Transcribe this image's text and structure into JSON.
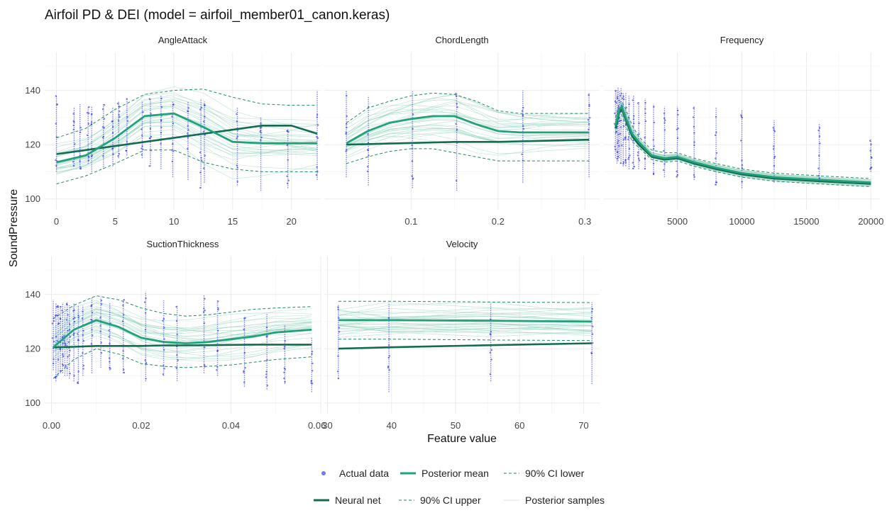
{
  "title": "Airfoil PD & DEI (model = airfoil_member01_canon.keras)",
  "xlabel": "Feature value",
  "ylabel": "SoundPressure",
  "colors": {
    "actual": "#2222ee",
    "posterior_mean": "#22a17c",
    "ci": "#1b8a63",
    "neural_net": "#156b52",
    "samples": "#8fd1b9",
    "grid": "#ebebeb"
  },
  "legend": {
    "row1": [
      "Actual data",
      "Posterior mean",
      "90% CI lower"
    ],
    "row2": [
      "Neural net",
      "90% CI upper",
      "Posterior samples"
    ]
  },
  "chart_data": [
    {
      "type": "line",
      "facet": "AngleAttack",
      "xlim": [
        -1,
        22.5
      ],
      "ylim": [
        96,
        154
      ],
      "xticks": [
        0,
        5,
        10,
        15,
        20
      ],
      "xtick_labels": [
        "0",
        "5",
        "10",
        "15",
        "20"
      ],
      "yticks": [
        100,
        120,
        140
      ],
      "x": [
        0,
        2.5,
        5,
        7.5,
        10,
        12.5,
        15,
        17.5,
        20,
        22.2
      ],
      "posterior_mean": [
        113.5,
        116,
        122.5,
        130.5,
        131.5,
        126.5,
        121,
        120.5,
        120.5,
        120.5
      ],
      "ci_lower": [
        105.5,
        108.5,
        113,
        118,
        118,
        113.5,
        111,
        110,
        110,
        110
      ],
      "ci_upper": [
        122.5,
        126,
        133,
        138.5,
        140,
        140.5,
        137.5,
        135,
        134.5,
        134.5
      ],
      "neural_net": [
        116.5,
        118,
        119.5,
        121,
        122.5,
        124,
        125.5,
        127,
        127,
        124
      ],
      "actual_x": [
        0,
        1.5,
        2,
        2.7,
        3,
        4,
        4.8,
        5.3,
        6,
        7.3,
        8,
        8.9,
        9.9,
        11.2,
        12.3,
        12.6,
        15.4,
        17.4,
        19.7,
        22.2
      ],
      "actual_y": [
        [
          110,
          138
        ],
        [
          112,
          134
        ],
        [
          111,
          135
        ],
        [
          113,
          134
        ],
        [
          110,
          134
        ],
        [
          111,
          135
        ],
        [
          112,
          134
        ],
        [
          115,
          136
        ],
        [
          116,
          137
        ],
        [
          115,
          136
        ],
        [
          112,
          137
        ],
        [
          111,
          138
        ],
        [
          108,
          136
        ],
        [
          107,
          136
        ],
        [
          104,
          137
        ],
        [
          106,
          136
        ],
        [
          105,
          134
        ],
        [
          103,
          130
        ],
        [
          104,
          126
        ],
        [
          107,
          140
        ]
      ]
    },
    {
      "type": "line",
      "facet": "ChordLength",
      "xlim": [
        0.0,
        0.317
      ],
      "ylim": [
        96,
        154
      ],
      "xticks": [
        0.1,
        0.2,
        0.3
      ],
      "xtick_labels": [
        "0.1",
        "0.2",
        "0.3"
      ],
      "yticks": [
        100,
        120,
        140
      ],
      "x": [
        0.0254,
        0.05,
        0.075,
        0.1,
        0.125,
        0.15,
        0.175,
        0.2,
        0.225,
        0.25,
        0.3048
      ],
      "posterior_mean": [
        120.5,
        125,
        128,
        129.5,
        130.5,
        130.5,
        127.5,
        125,
        124.5,
        124.5,
        124.5
      ],
      "ci_lower": [
        113,
        115.5,
        117.5,
        118.5,
        118.5,
        117,
        115.5,
        114,
        114,
        114,
        114
      ],
      "ci_upper": [
        128,
        133.5,
        136,
        138,
        139,
        138.5,
        136,
        132.5,
        131.5,
        131.5,
        131.5
      ],
      "neural_net": [
        120,
        120.2,
        120.4,
        120.6,
        120.8,
        121,
        121,
        121,
        121.2,
        121.4,
        121.8
      ],
      "actual_x": [
        0.0254,
        0.0508,
        0.1016,
        0.1524,
        0.2286,
        0.3048
      ],
      "actual_y": [
        [
          108,
          140
        ],
        [
          105,
          138
        ],
        [
          104,
          140
        ],
        [
          103,
          139
        ],
        [
          106,
          140
        ],
        [
          108,
          139
        ]
      ]
    },
    {
      "type": "line",
      "facet": "Frequency",
      "xlim": [
        -700,
        20700
      ],
      "ylim": [
        96,
        154
      ],
      "xticks": [
        5000,
        10000,
        15000,
        20000
      ],
      "xtick_labels": [
        "5000",
        "10000",
        "15000",
        "20000"
      ],
      "yticks": [
        100,
        120,
        140
      ],
      "x": [
        200,
        500,
        700,
        1000,
        1500,
        2000,
        3000,
        4000,
        5000,
        6300,
        8000,
        10000,
        12500,
        16000,
        20000
      ],
      "posterior_mean": [
        127,
        133,
        134,
        130,
        124,
        121,
        116,
        115,
        115.5,
        113.5,
        111.5,
        109.5,
        108,
        107,
        106
      ],
      "ci_lower": [
        124,
        130,
        131,
        127,
        121,
        119,
        114.5,
        113.5,
        114,
        112,
        110,
        108,
        106.5,
        105.5,
        104.5
      ],
      "ci_upper": [
        130,
        135.5,
        136,
        133,
        127,
        123,
        118,
        117,
        117,
        115,
        113,
        111,
        109.5,
        108.5,
        107.5
      ],
      "neural_net": [
        126,
        132,
        133,
        129,
        123,
        120,
        115.5,
        114.5,
        115,
        113,
        111,
        109,
        107.5,
        106.5,
        105.5
      ],
      "actual_x": [
        200,
        315,
        400,
        500,
        630,
        800,
        1000,
        1250,
        1600,
        2000,
        2500,
        3150,
        4000,
        5000,
        6300,
        8000,
        10000,
        12500,
        16000,
        20000
      ],
      "actual_y": [
        [
          115,
          140
        ],
        [
          113,
          140
        ],
        [
          114,
          141
        ],
        [
          115,
          140
        ],
        [
          113,
          141
        ],
        [
          112,
          139
        ],
        [
          112,
          139
        ],
        [
          111,
          138
        ],
        [
          111,
          138
        ],
        [
          111,
          136
        ],
        [
          111,
          137
        ],
        [
          109,
          135
        ],
        [
          108,
          134
        ],
        [
          108,
          134
        ],
        [
          107,
          134
        ],
        [
          105,
          134
        ],
        [
          104,
          133
        ],
        [
          106,
          129
        ],
        [
          106,
          128
        ],
        [
          110,
          122
        ]
      ]
    },
    {
      "type": "line",
      "facet": "SuctionThickness",
      "xlim": [
        -0.0015,
        0.06
      ],
      "ylim": [
        96,
        154
      ],
      "xticks": [
        0.0,
        0.02,
        0.04,
        0.06
      ],
      "xtick_labels": [
        "0.00",
        "0.02",
        "0.04",
        "0.06"
      ],
      "yticks": [
        100,
        120,
        140
      ],
      "x": [
        0.0004,
        0.005,
        0.01,
        0.015,
        0.02,
        0.025,
        0.03,
        0.035,
        0.04,
        0.045,
        0.05,
        0.058
      ],
      "posterior_mean": [
        120.5,
        127,
        130.5,
        128,
        124,
        122.5,
        122,
        122.5,
        123.5,
        124.5,
        126,
        127
      ],
      "ci_lower": [
        109,
        116,
        120,
        118,
        114.5,
        113.5,
        113,
        113.5,
        114,
        115,
        116,
        117
      ],
      "ci_upper": [
        131,
        136,
        139.5,
        138,
        135,
        133,
        132,
        132.5,
        133.5,
        134.5,
        135,
        135.5
      ],
      "neural_net": [
        120.5,
        120.7,
        121,
        121,
        121,
        121.2,
        121.2,
        121.3,
        121.4,
        121.5,
        121.5,
        121.5
      ],
      "actual_x": [
        0.0004,
        0.001,
        0.0015,
        0.002,
        0.0025,
        0.003,
        0.0035,
        0.004,
        0.005,
        0.006,
        0.007,
        0.009,
        0.011,
        0.013,
        0.016,
        0.021,
        0.025,
        0.028,
        0.034,
        0.037,
        0.043,
        0.048,
        0.052,
        0.058
      ],
      "actual_y": [
        [
          112,
          138
        ],
        [
          108,
          137
        ],
        [
          110,
          136
        ],
        [
          111,
          136
        ],
        [
          111,
          137
        ],
        [
          110,
          136
        ],
        [
          110,
          137
        ],
        [
          109,
          136
        ],
        [
          108,
          137
        ],
        [
          107,
          136
        ],
        [
          110,
          136
        ],
        [
          111,
          139
        ],
        [
          113,
          139
        ],
        [
          112,
          137
        ],
        [
          111,
          138
        ],
        [
          108,
          141
        ],
        [
          110,
          138
        ],
        [
          108,
          136
        ],
        [
          111,
          140
        ],
        [
          110,
          138
        ],
        [
          106,
          132
        ],
        [
          105,
          133
        ],
        [
          107,
          129
        ],
        [
          104,
          124
        ]
      ]
    },
    {
      "type": "line",
      "facet": "Velocity",
      "xlim": [
        29.5,
        72.5
      ],
      "ylim": [
        96,
        154
      ],
      "xticks": [
        30,
        40,
        50,
        60,
        70
      ],
      "xtick_labels": [
        "30",
        "40",
        "50",
        "60",
        "70"
      ],
      "yticks": [
        100,
        120,
        140
      ],
      "x": [
        31.7,
        39.6,
        55.5,
        71.3
      ],
      "posterior_mean": [
        130.5,
        130.5,
        130.3,
        130
      ],
      "ci_lower": [
        123.5,
        123.5,
        123.2,
        123
      ],
      "ci_upper": [
        137.5,
        137.5,
        137.2,
        137
      ],
      "neural_net": [
        120,
        120.5,
        121.3,
        122
      ],
      "actual_x": [
        31.7,
        39.6,
        55.5,
        71.3
      ],
      "actual_y": [
        [
          109,
          136
        ],
        [
          104,
          137
        ],
        [
          108,
          137
        ],
        [
          107,
          137
        ]
      ]
    }
  ]
}
